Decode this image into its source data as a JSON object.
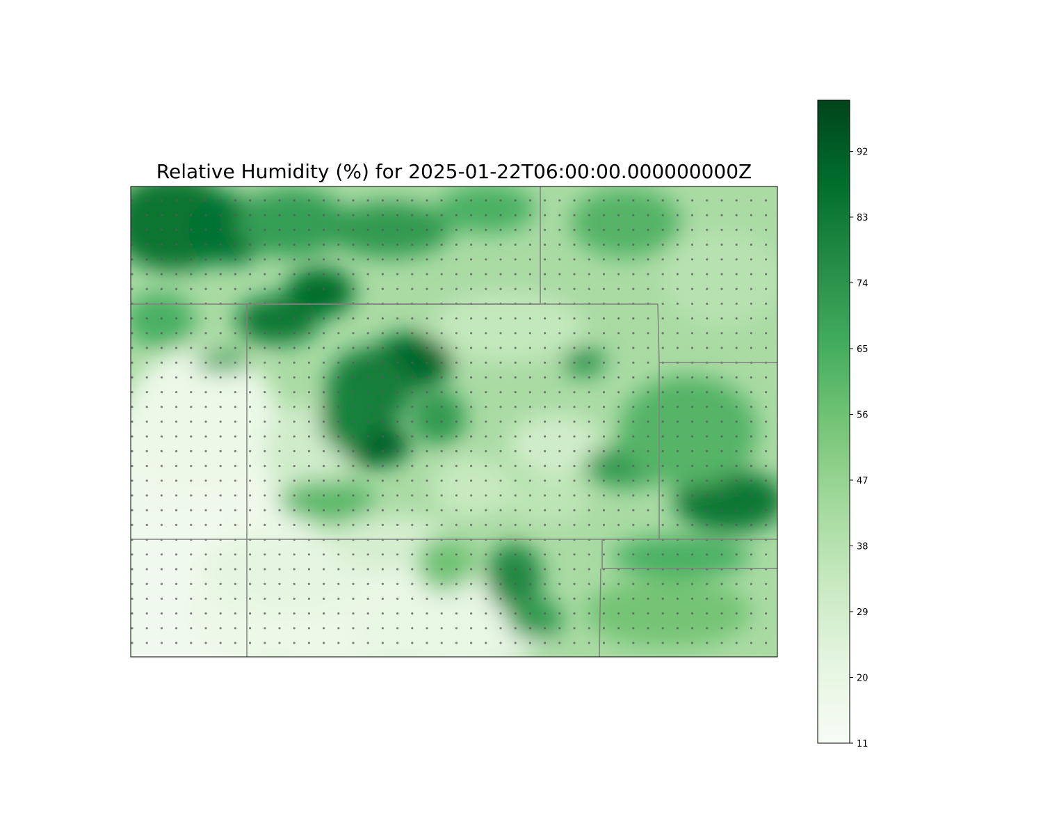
{
  "title": "Relative Humidity (%) for 2025-01-22T06:00:00.000000000Z",
  "colorbar": {
    "colormap": "Greens",
    "min": 11,
    "max": 99,
    "ticks": [
      11,
      20,
      29,
      38,
      47,
      56,
      65,
      74,
      83,
      92
    ]
  },
  "colors": {
    "low": "#f7fcf5",
    "mid": "#74c476",
    "high": "#00441b",
    "boundary": "#808080",
    "station_dot": "#5a5a5a"
  },
  "map": {
    "boundaries": "state/county border lines",
    "station_dots": "regular grid of sample points"
  }
}
